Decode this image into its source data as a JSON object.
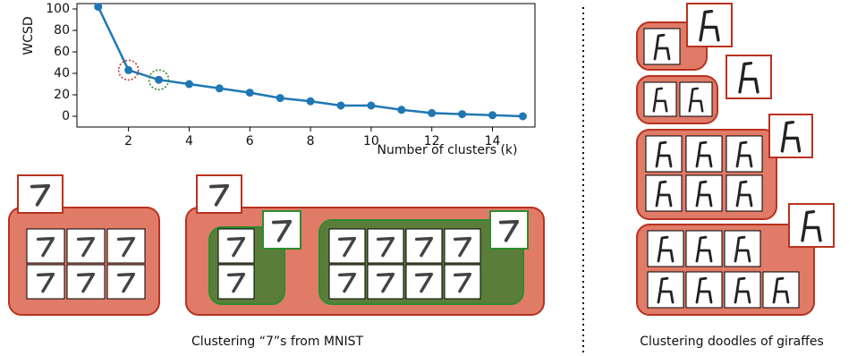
{
  "chart_data": {
    "type": "line",
    "x": [
      1,
      2,
      3,
      4,
      5,
      6,
      7,
      8,
      9,
      10,
      11,
      12,
      13,
      14,
      15
    ],
    "series": [
      {
        "color": "#1f77b4",
        "values": [
          102,
          43,
          34,
          30,
          26,
          22,
          17,
          14,
          10,
          10,
          6,
          3,
          2,
          1,
          0
        ]
      }
    ],
    "xlabel": "Number of clusters (k)",
    "ylabel": "WCSD",
    "xlim": [
      0.3,
      15.4
    ],
    "ylim": [
      -10,
      105
    ],
    "xticks": [
      2,
      4,
      6,
      8,
      10,
      12,
      14
    ],
    "yticks": [
      0,
      20,
      40,
      60,
      80,
      100
    ]
  },
  "captions": [
    "Clustering “7”s from MNIST",
    "Clustering doodles of giraffes"
  ]
}
